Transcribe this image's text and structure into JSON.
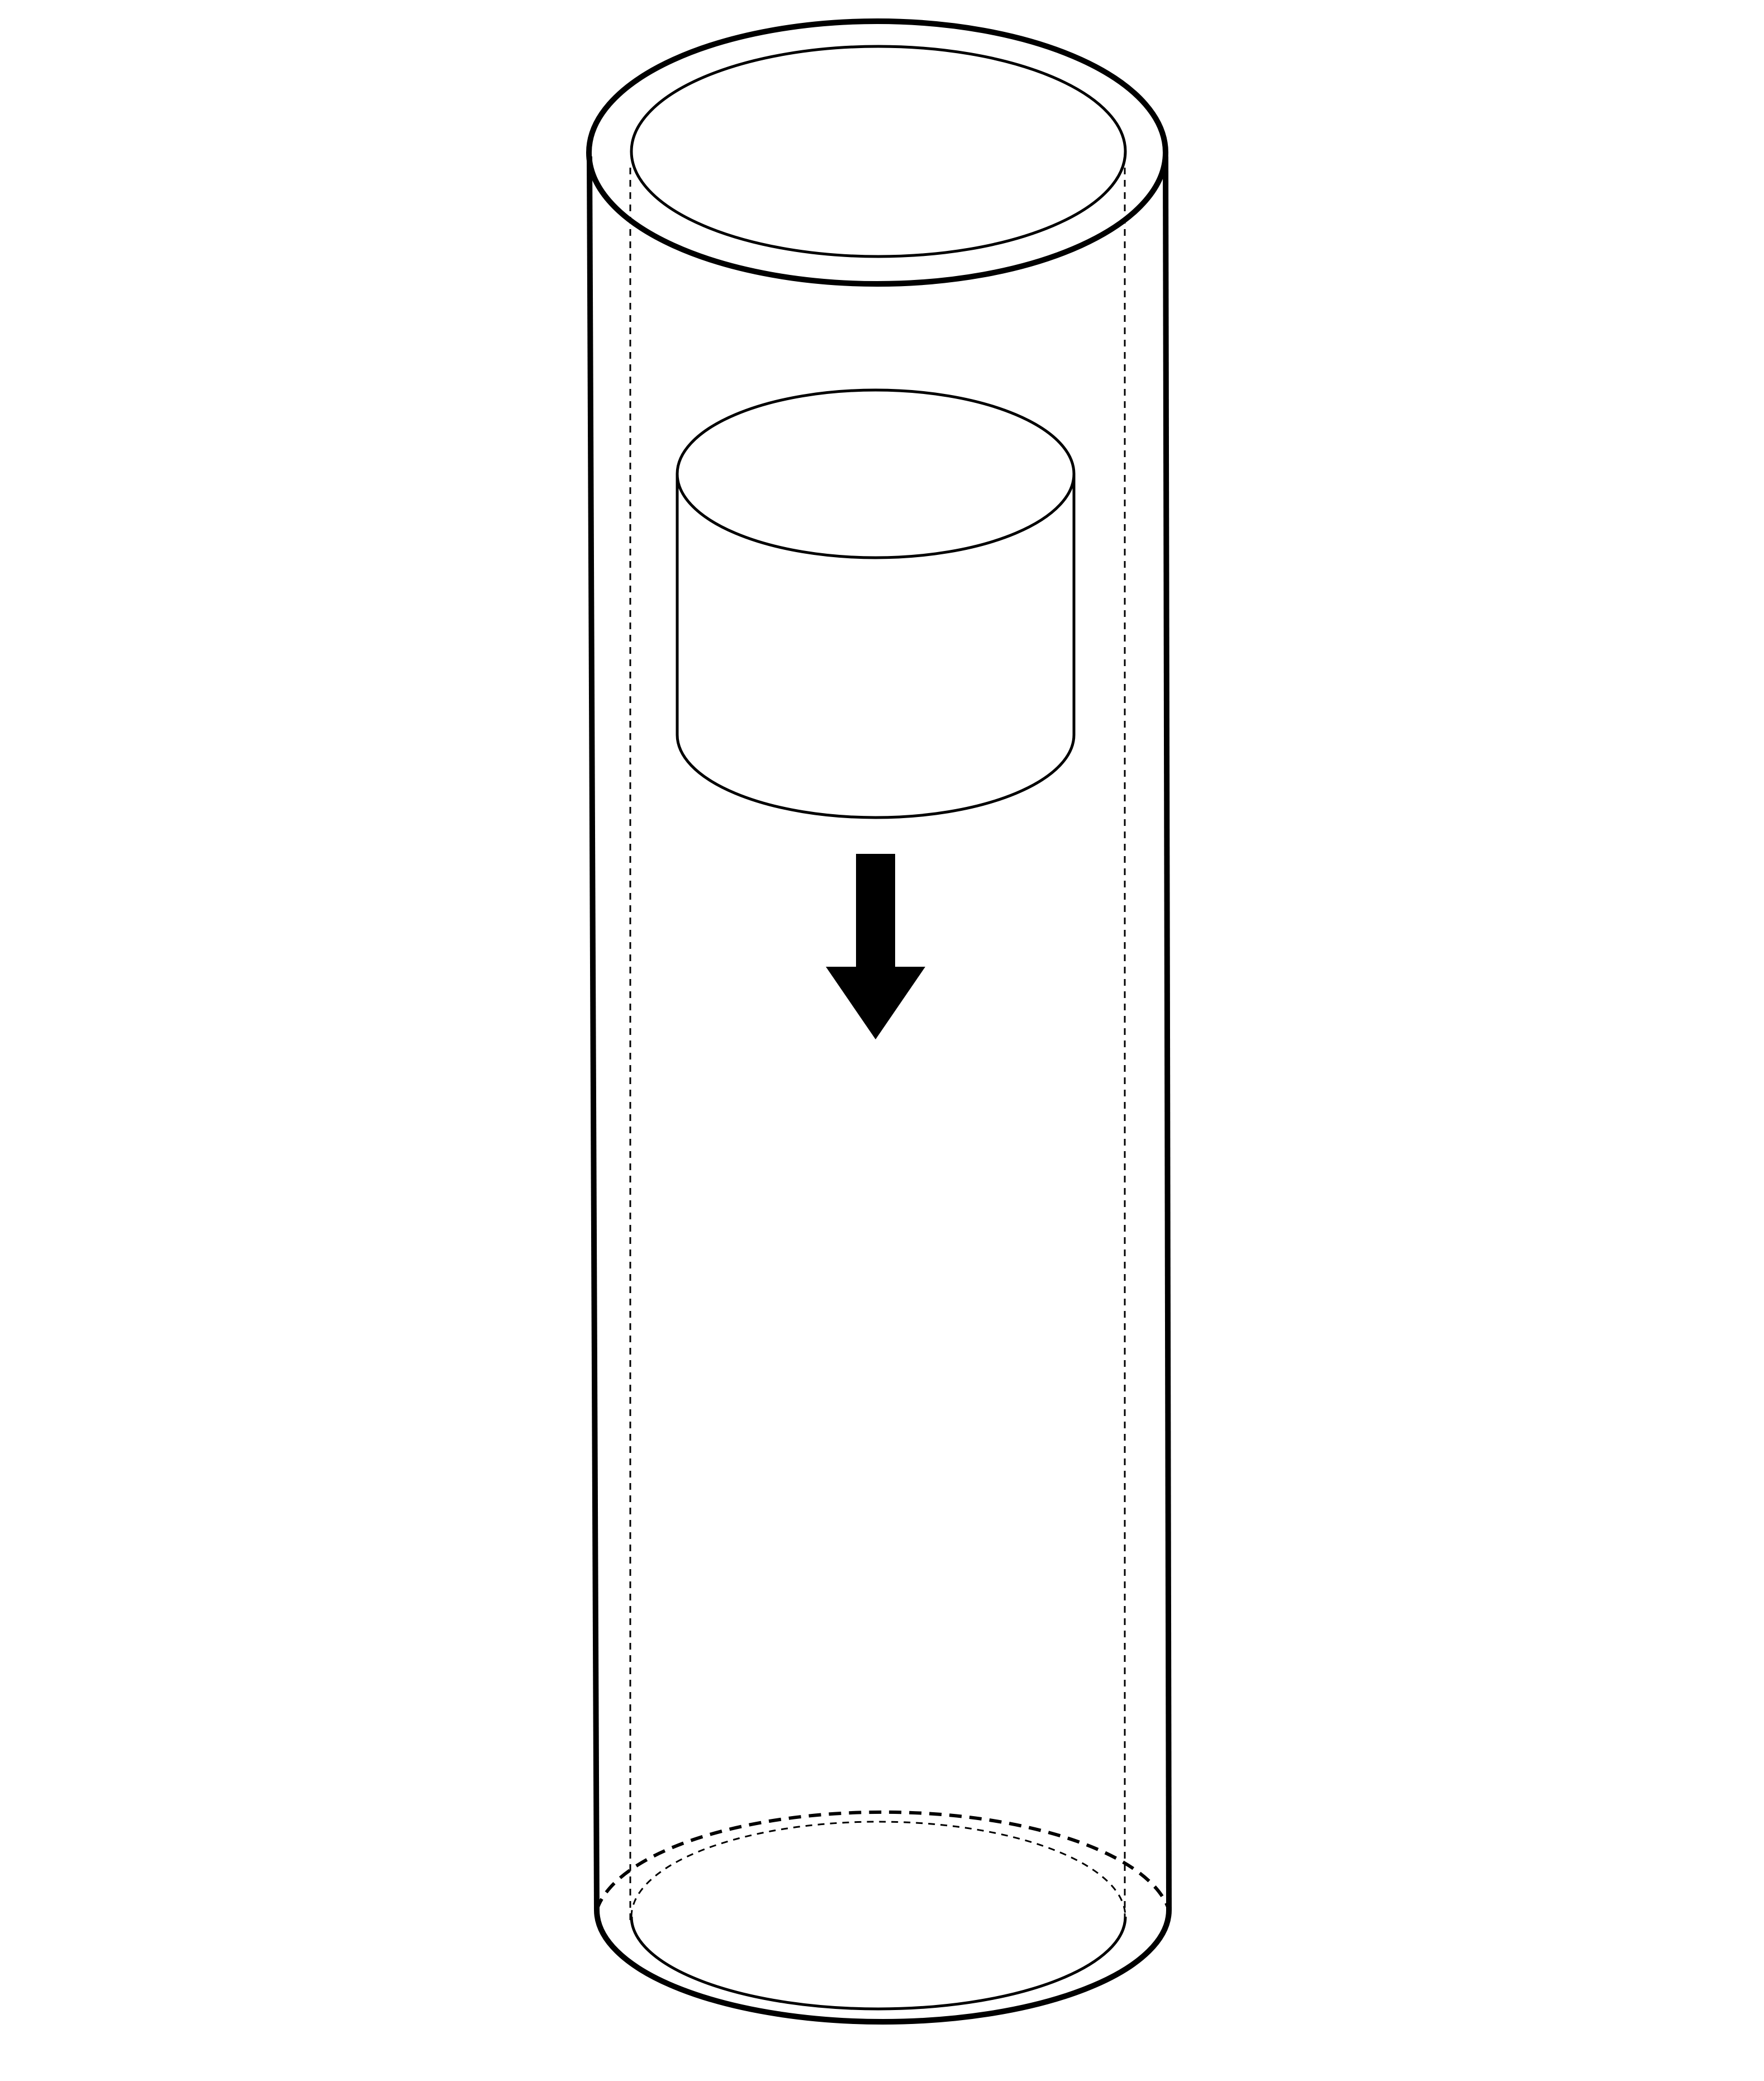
{
  "diagram": {
    "description_free": true,
    "colors": {
      "background": "#ffffff",
      "stroke": "#000000",
      "arrow": "#000000"
    },
    "elements": [
      "outer-tube",
      "tube-top-rim",
      "tube-bottom-rim",
      "hidden-inner-walls",
      "falling-cylinder",
      "down-arrow-icon"
    ]
  }
}
